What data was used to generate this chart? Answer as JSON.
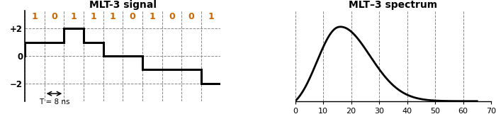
{
  "left_title": "MLT-3 signal",
  "right_title": "MLT–3 spectrum",
  "bits": [
    "1",
    "0",
    "1",
    "1",
    "1",
    "0",
    "1",
    "0",
    "0",
    "1"
  ],
  "bit_seq": [
    1,
    0,
    1,
    1,
    1,
    0,
    1,
    0,
    0,
    1
  ],
  "yticks": [
    -2,
    0,
    2
  ],
  "ylabels": [
    "−2",
    "0",
    "+2"
  ],
  "T_label": "T = 8 ns",
  "background": "#ffffff",
  "signal_color": "#000000",
  "grid_color": "#888888",
  "bit_color": "#cc6600"
}
